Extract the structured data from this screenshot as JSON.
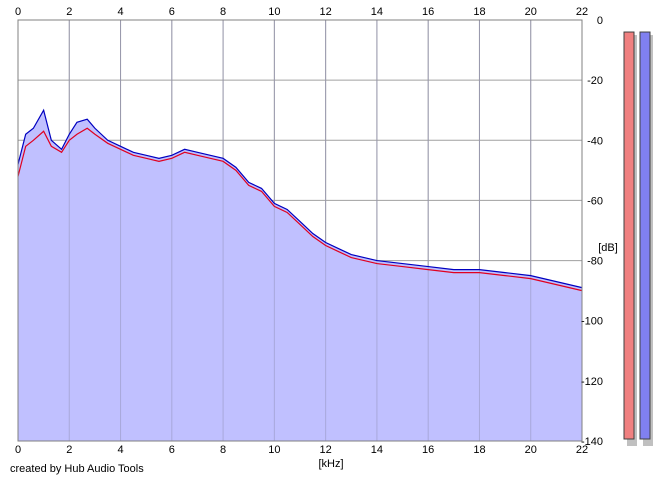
{
  "chart_data": {
    "type": "area",
    "title": "",
    "xlabel": "[kHz]",
    "ylabel": "[dB]",
    "xlim": [
      0,
      22
    ],
    "ylim": [
      -140,
      0
    ],
    "x_ticks": [
      0,
      2,
      4,
      6,
      8,
      10,
      12,
      14,
      16,
      18,
      20,
      22
    ],
    "y_ticks": [
      0,
      -20,
      -40,
      -60,
      -80,
      -100,
      -120,
      -140
    ],
    "grid": true,
    "fill_color": "#c0c0ff",
    "series": [
      {
        "color": "#e00020",
        "x": [
          0,
          0.3,
          0.6,
          1.0,
          1.3,
          1.7,
          2.0,
          2.3,
          2.7,
          3.0,
          3.5,
          4.0,
          4.5,
          5.0,
          5.5,
          6.0,
          6.5,
          7.0,
          7.5,
          8.0,
          8.5,
          9.0,
          9.5,
          10.0,
          10.5,
          11.0,
          11.5,
          12.0,
          12.5,
          13.0,
          13.5,
          14.0,
          15.0,
          16.0,
          17.0,
          18.0,
          19.0,
          20.0,
          20.5,
          21.0,
          21.5,
          22.0
        ],
        "values": [
          -52,
          -42,
          -40,
          -37,
          -42,
          -44,
          -40,
          -38,
          -36,
          -38,
          -41,
          -43,
          -45,
          -46,
          -47,
          -46,
          -44,
          -45,
          -46,
          -47,
          -50,
          -55,
          -57,
          -62,
          -64,
          -68,
          -72,
          -75,
          -77,
          -79,
          -80,
          -81,
          -82,
          -83,
          -84,
          -84,
          -85,
          -86,
          -87,
          -88,
          -89,
          -90
        ]
      },
      {
        "color": "#0000c0",
        "x": [
          0,
          0.3,
          0.6,
          1.0,
          1.3,
          1.7,
          2.0,
          2.3,
          2.7,
          3.0,
          3.5,
          4.0,
          4.5,
          5.0,
          5.5,
          6.0,
          6.5,
          7.0,
          7.5,
          8.0,
          8.5,
          9.0,
          9.5,
          10.0,
          10.5,
          11.0,
          11.5,
          12.0,
          12.5,
          13.0,
          13.5,
          14.0,
          15.0,
          16.0,
          17.0,
          18.0,
          19.0,
          20.0,
          20.5,
          21.0,
          21.5,
          22.0
        ],
        "values": [
          -48,
          -38,
          -36,
          -30,
          -40,
          -43,
          -38,
          -34,
          -33,
          -36,
          -40,
          -42,
          -44,
          -45,
          -46,
          -45,
          -43,
          -44,
          -45,
          -46,
          -49,
          -54,
          -56,
          -61,
          -63,
          -67,
          -71,
          -74,
          -76,
          -78,
          -79,
          -80,
          -81,
          -82,
          -83,
          -83,
          -84,
          -85,
          -86,
          -87,
          -88,
          -89
        ]
      }
    ],
    "meters": {
      "left_color": "#f08080",
      "right_color": "#8080f0"
    }
  },
  "footer": {
    "credit": "created by Hub Audio Tools"
  }
}
